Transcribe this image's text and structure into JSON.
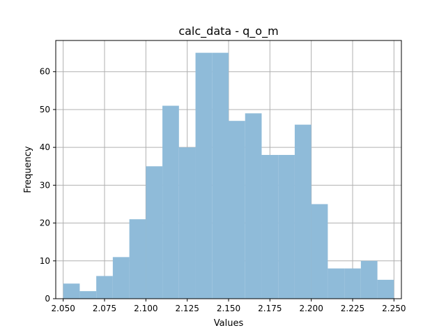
{
  "chart_data": {
    "type": "bar",
    "subtype": "histogram",
    "title": "calc_data - q_o_m",
    "xlabel": "Values",
    "ylabel": "Frequency",
    "xlim": [
      2.0455,
      2.2545
    ],
    "ylim": [
      0,
      68.25
    ],
    "grid": true,
    "bar_color": "#8fbbd9",
    "bin_edges": [
      2.05,
      2.06,
      2.07,
      2.08,
      2.09,
      2.1,
      2.11,
      2.12,
      2.13,
      2.14,
      2.15,
      2.16,
      2.17,
      2.18,
      2.19,
      2.2,
      2.21,
      2.22,
      2.23,
      2.24,
      2.25
    ],
    "values": [
      4,
      2,
      6,
      11,
      21,
      35,
      51,
      40,
      65,
      65,
      47,
      49,
      38,
      38,
      46,
      25,
      8,
      8,
      10,
      5
    ],
    "x_ticks": [
      2.05,
      2.075,
      2.1,
      2.125,
      2.15,
      2.175,
      2.2,
      2.225,
      2.25
    ],
    "x_tick_labels": [
      "2.050",
      "2.075",
      "2.100",
      "2.125",
      "2.150",
      "2.175",
      "2.200",
      "2.225",
      "2.250"
    ],
    "y_ticks": [
      0,
      10,
      20,
      30,
      40,
      50,
      60
    ],
    "y_tick_labels": [
      "0",
      "10",
      "20",
      "30",
      "40",
      "50",
      "60"
    ]
  }
}
